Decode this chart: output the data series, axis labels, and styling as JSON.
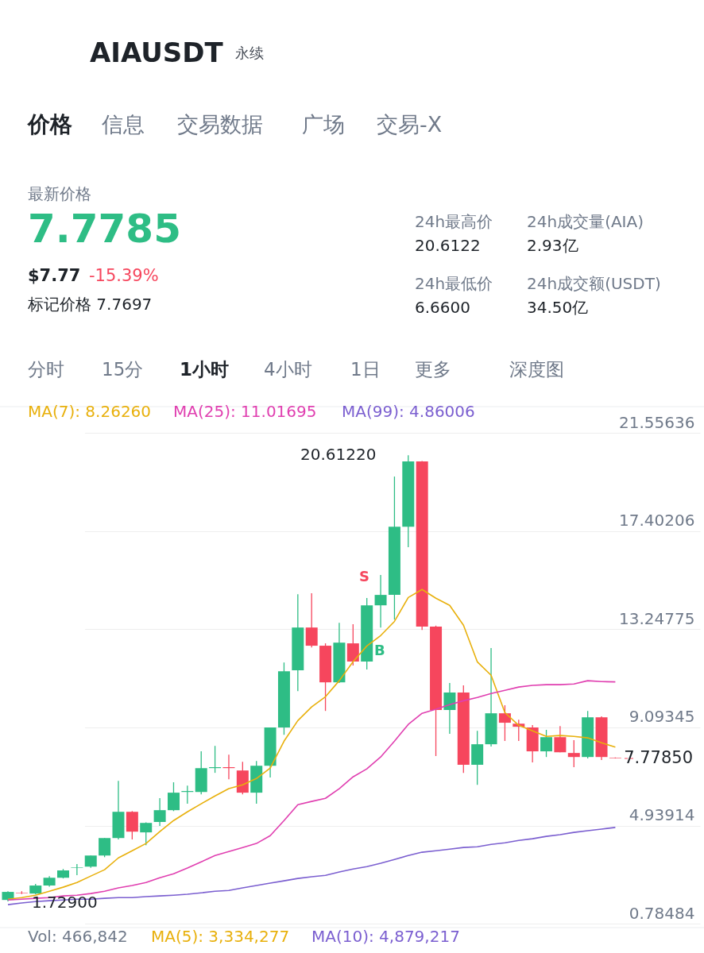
{
  "chart_data": {
    "type": "candlestick",
    "title": "AIAUSDT",
    "subtitle": "永续",
    "categories": [
      null,
      null,
      null,
      null,
      null,
      null,
      null,
      null,
      null,
      null,
      null,
      null,
      null,
      null,
      null,
      null,
      null,
      null,
      null,
      null,
      null,
      null,
      null,
      null,
      null,
      null,
      null,
      null,
      null,
      null,
      null,
      null,
      null,
      null,
      null,
      null,
      null,
      null,
      null,
      null,
      null,
      null,
      null,
      null,
      null
    ],
    "ohlc": [
      [
        1.79,
        2.16,
        1.729,
        2.13
      ],
      [
        2.1,
        2.16,
        2.04,
        2.08
      ],
      [
        2.06,
        2.47,
        2.03,
        2.4
      ],
      [
        2.4,
        2.8,
        2.35,
        2.73
      ],
      [
        2.73,
        3.1,
        2.7,
        3.04
      ],
      [
        3.15,
        3.31,
        2.84,
        3.17
      ],
      [
        3.2,
        3.67,
        3.15,
        3.67
      ],
      [
        3.67,
        4.41,
        3.6,
        4.41
      ],
      [
        4.41,
        6.83,
        4.35,
        5.52
      ],
      [
        5.52,
        5.55,
        4.35,
        4.68
      ],
      [
        4.65,
        5.07,
        4.11,
        5.05
      ],
      [
        5.09,
        6.1,
        4.92,
        5.59
      ],
      [
        5.59,
        6.77,
        5.55,
        6.33
      ],
      [
        6.36,
        6.63,
        5.86,
        6.4
      ],
      [
        6.36,
        8.08,
        6.26,
        7.37
      ],
      [
        7.37,
        8.31,
        7.17,
        7.41
      ],
      [
        7.41,
        7.94,
        6.9,
        7.37
      ],
      [
        7.27,
        7.64,
        6.26,
        6.33
      ],
      [
        6.33,
        7.67,
        5.86,
        7.47
      ],
      [
        7.47,
        9.09,
        6.97,
        9.09
      ],
      [
        9.09,
        11.84,
        8.78,
        11.47
      ],
      [
        11.51,
        14.73,
        10.63,
        13.32
      ],
      [
        13.32,
        14.77,
        12.48,
        12.55
      ],
      [
        12.55,
        12.65,
        9.79,
        11.0
      ],
      [
        11.0,
        13.52,
        10.97,
        12.68
      ],
      [
        12.65,
        13.46,
        11.71,
        11.88
      ],
      [
        11.88,
        14.57,
        11.54,
        14.26
      ],
      [
        14.26,
        15.54,
        13.32,
        14.7
      ],
      [
        14.7,
        19.71,
        13.66,
        17.59
      ],
      [
        17.59,
        20.6122,
        16.72,
        20.35
      ],
      [
        20.35,
        20.37,
        13.22,
        13.36
      ],
      [
        13.36,
        13.4,
        7.88,
        9.83
      ],
      [
        9.83,
        10.97,
        8.82,
        10.57
      ],
      [
        10.57,
        10.87,
        7.17,
        7.51
      ],
      [
        7.51,
        8.95,
        6.66,
        8.38
      ],
      [
        8.38,
        12.45,
        8.28,
        9.69
      ],
      [
        9.69,
        10.03,
        8.52,
        9.29
      ],
      [
        9.25,
        9.42,
        8.52,
        9.12
      ],
      [
        9.09,
        9.19,
        7.61,
        8.08
      ],
      [
        8.08,
        8.99,
        7.84,
        8.68
      ],
      [
        8.68,
        9.15,
        8.04,
        8.04
      ],
      [
        8.01,
        8.55,
        7.41,
        7.84
      ],
      [
        7.84,
        9.79,
        7.78,
        9.52
      ],
      [
        9.52,
        9.56,
        7.71,
        7.84
      ],
      [
        7.8,
        7.82,
        7.7785,
        7.7785
      ]
    ],
    "colors": [
      "#2ebd85",
      "#f6465d",
      "#2ebd85",
      "#2ebd85",
      "#2ebd85",
      "#2ebd85",
      "#2ebd85",
      "#2ebd85",
      "#2ebd85",
      "#f6465d",
      "#2ebd85",
      "#2ebd85",
      "#2ebd85",
      "#2ebd85",
      "#2ebd85",
      "#2ebd85",
      "#f6465d",
      "#f6465d",
      "#2ebd85",
      "#2ebd85",
      "#2ebd85",
      "#2ebd85",
      "#f6465d",
      "#f6465d",
      "#2ebd85",
      "#f6465d",
      "#2ebd85",
      "#2ebd85",
      "#2ebd85",
      "#2ebd85",
      "#f6465d",
      "#f6465d",
      "#2ebd85",
      "#f6465d",
      "#2ebd85",
      "#2ebd85",
      "#f6465d",
      "#f6465d",
      "#f6465d",
      "#2ebd85",
      "#f6465d",
      "#f6465d",
      "#2ebd85",
      "#f6465d",
      "#f6465d"
    ],
    "series": [
      {
        "name": "MA(7): 8.26260",
        "type": "line",
        "color": "#e8b00c",
        "values": [
          1.82,
          1.89,
          1.99,
          2.16,
          2.33,
          2.53,
          2.8,
          3.07,
          3.57,
          3.87,
          4.18,
          4.68,
          5.15,
          5.52,
          5.86,
          6.19,
          6.5,
          6.66,
          6.93,
          7.37,
          8.51,
          9.38,
          9.96,
          10.39,
          11.07,
          11.87,
          12.54,
          12.98,
          13.58,
          14.59,
          14.93,
          14.56,
          14.26,
          13.42,
          11.87,
          11.3,
          9.72,
          9.18,
          8.95,
          8.71,
          8.75,
          8.71,
          8.65,
          8.44,
          8.26
        ]
      },
      {
        "name": "MA(25): 11.01695",
        "type": "line",
        "color": "#e03fb0",
        "values": [
          1.79,
          1.82,
          1.86,
          1.89,
          1.96,
          1.99,
          2.06,
          2.16,
          2.3,
          2.4,
          2.53,
          2.73,
          2.9,
          3.14,
          3.4,
          3.67,
          3.84,
          4.01,
          4.18,
          4.51,
          5.15,
          5.82,
          5.96,
          6.09,
          6.5,
          7.0,
          7.34,
          7.84,
          8.51,
          9.22,
          9.69,
          9.86,
          10.06,
          10.22,
          10.36,
          10.53,
          10.66,
          10.8,
          10.87,
          10.9,
          10.9,
          10.93,
          11.07,
          11.03,
          11.02
        ]
      },
      {
        "name": "MA(99): 4.86006",
        "type": "line",
        "color": "#7b5fd0",
        "values": [
          1.59,
          1.66,
          1.72,
          1.76,
          1.79,
          1.82,
          1.82,
          1.86,
          1.89,
          1.89,
          1.93,
          1.96,
          1.99,
          2.03,
          2.09,
          2.16,
          2.19,
          2.3,
          2.4,
          2.5,
          2.6,
          2.7,
          2.77,
          2.83,
          2.97,
          3.1,
          3.2,
          3.34,
          3.5,
          3.67,
          3.81,
          3.87,
          3.94,
          4.01,
          4.04,
          4.14,
          4.21,
          4.31,
          4.38,
          4.48,
          4.55,
          4.65,
          4.72,
          4.79,
          4.86
        ]
      }
    ],
    "ylim": [
      0.62,
      22.67
    ],
    "yticks": [
      0.78484,
      4.93914,
      9.09345,
      13.24775,
      17.40206,
      21.55636
    ],
    "grid": "y",
    "ref_lines": [
      {
        "axis": "y",
        "value": 7.7785,
        "label": "7.77850",
        "color": "#f6465d",
        "line_style": "dashed"
      }
    ],
    "annotations": [
      "价格",
      "信息",
      "交易数据",
      "广场",
      "交易-X",
      "最新价格",
      "7.7785",
      "$7.77",
      "-15.39%",
      "标记价格 7.7697",
      "24h最高价",
      "20.6122",
      "24h成交量(AIA)",
      "2.93亿",
      "24h最低价",
      "6.6600",
      "24h成交额(USDT)",
      "34.50亿",
      "分时",
      "15分",
      "1小时",
      "4小时",
      "1日",
      "更多",
      "深度图",
      "S",
      "B",
      "Vol: 466,842",
      "MA(5): 3,334,277",
      "MA(10): 4,879,217",
      "20.61220",
      "1.72900"
    ]
  }
}
